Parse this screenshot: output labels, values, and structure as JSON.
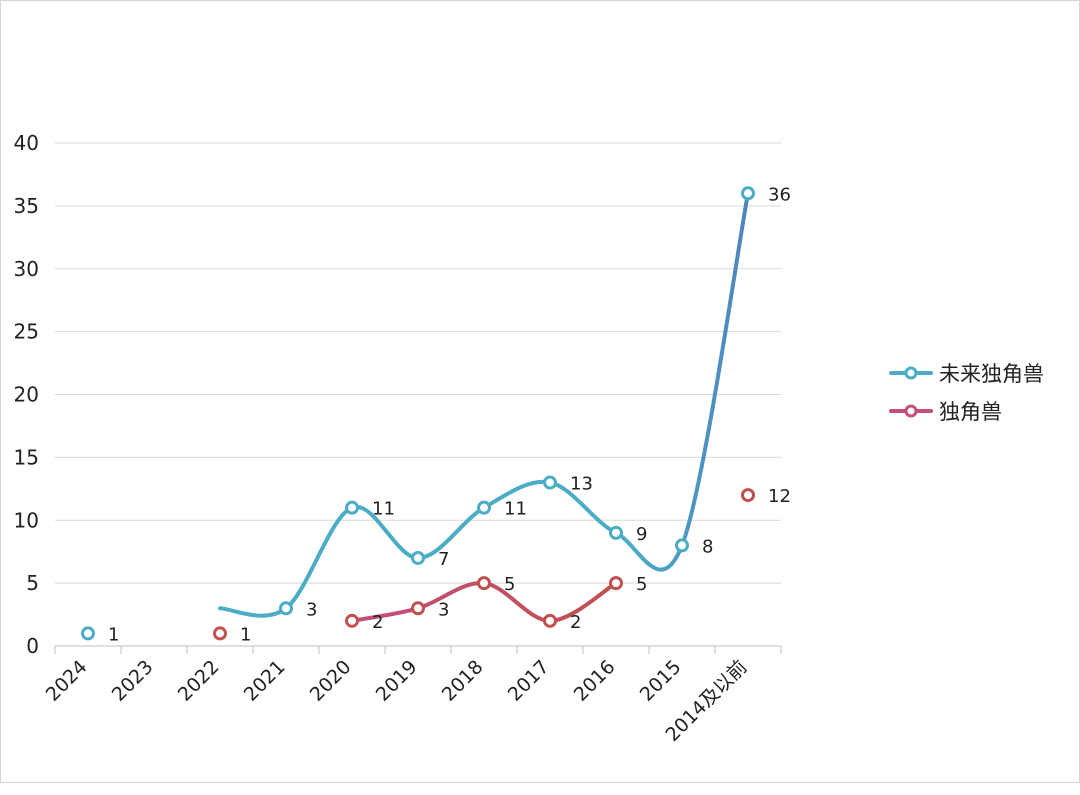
{
  "chart_data": {
    "type": "line",
    "categories": [
      "2024",
      "2023",
      "2022",
      "2021",
      "2020",
      "2019",
      "2018",
      "2017",
      "2016",
      "2015",
      "2014及以前"
    ],
    "ylim": [
      0,
      40
    ],
    "yticks": [
      0,
      5,
      10,
      15,
      20,
      25,
      30,
      35,
      40
    ],
    "grid": true,
    "legend_position": "right",
    "series": [
      {
        "name": "未来独角兽",
        "color": "#4bacc6",
        "color_end": "#4f81bd",
        "values": [
          1,
          null,
          3,
          3,
          11,
          7,
          11,
          13,
          9,
          8,
          36
        ],
        "points": [
          {
            "cat": 0,
            "y": 1,
            "label": "1"
          },
          {
            "cat": 3,
            "y": 3,
            "label": "3"
          },
          {
            "cat": 4,
            "y": 11,
            "label": "11"
          },
          {
            "cat": 5,
            "y": 7,
            "label": "7"
          },
          {
            "cat": 6,
            "y": 11,
            "label": "11"
          },
          {
            "cat": 7,
            "y": 13,
            "label": "13"
          },
          {
            "cat": 8,
            "y": 9,
            "label": "9"
          },
          {
            "cat": 9,
            "y": 8,
            "label": "8"
          },
          {
            "cat": 10,
            "y": 36,
            "label": "36"
          }
        ]
      },
      {
        "name": "独角兽",
        "color": "#c0504d",
        "color_mid": "#c24f7d",
        "values": [
          null,
          null,
          1,
          null,
          2,
          3,
          5,
          2,
          5,
          null,
          12
        ],
        "points": [
          {
            "cat": 2,
            "y": 1,
            "label": "1"
          },
          {
            "cat": 4,
            "y": 2,
            "label": "2"
          },
          {
            "cat": 5,
            "y": 3,
            "label": "3"
          },
          {
            "cat": 6,
            "y": 5,
            "label": "5"
          },
          {
            "cat": 7,
            "y": 2,
            "label": "2"
          },
          {
            "cat": 8,
            "y": 5,
            "label": "5"
          },
          {
            "cat": 10,
            "y": 12,
            "label": "12"
          }
        ]
      }
    ]
  }
}
